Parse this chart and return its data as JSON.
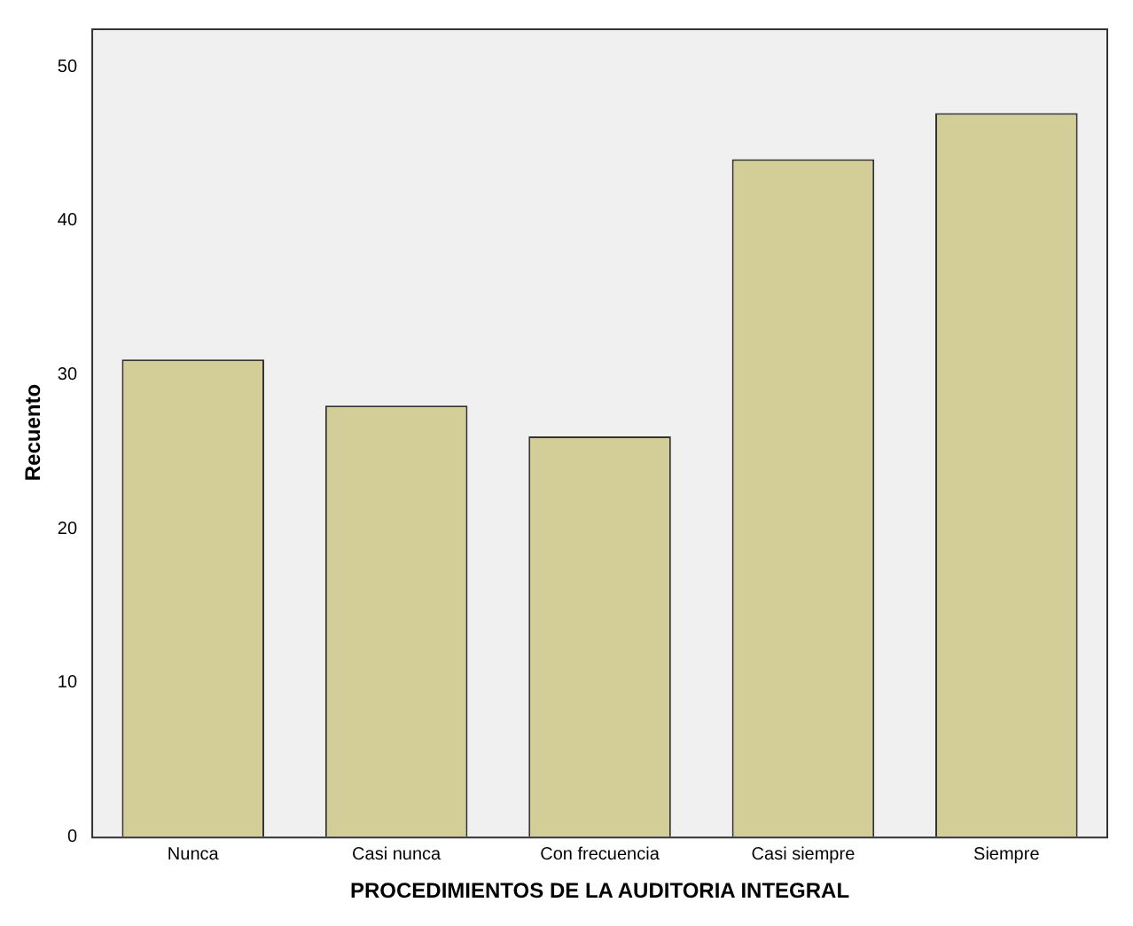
{
  "chart_data": {
    "type": "bar",
    "xlabel": "PROCEDIMIENTOS DE LA AUDITORIA INTEGRAL",
    "ylabel": "Recuento",
    "categories": [
      "Nunca",
      "Casi nunca",
      "Con frecuencia",
      "Casi siempre",
      "Siempre"
    ],
    "values": [
      31,
      28,
      26,
      44,
      47
    ],
    "color": "#d3ce97",
    "ylim": [
      0,
      52.5
    ],
    "yticks": [
      0,
      10,
      20,
      30,
      40,
      50
    ],
    "grid": false,
    "legend": false
  }
}
